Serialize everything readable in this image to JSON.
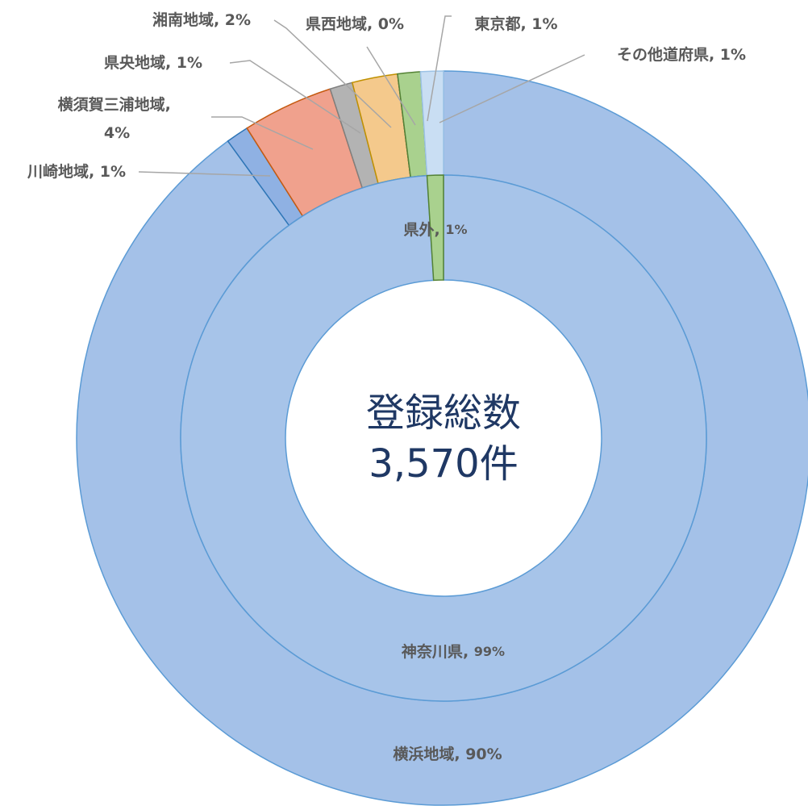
{
  "chart_data": {
    "type": "donut",
    "center_text": [
      "登録総数",
      "3,570件"
    ],
    "label_separator": ", ",
    "rings": [
      {
        "categories": [
          "横浜地域",
          "川崎地域",
          "横須賀三浦地域",
          "県央地域",
          "湘南地域",
          "県西地域",
          "東京都",
          "その他道府県"
        ],
        "values": [
          90,
          1,
          4,
          1,
          2,
          0,
          1,
          1
        ],
        "value_labels": [
          "90%",
          "1%",
          "4%",
          "1%",
          "2%",
          "0%",
          "1%",
          "1%"
        ],
        "colors": [
          "#a4c1e8",
          "#8fb1e3",
          "#f0a18d",
          "#b3b3b3",
          "#f4c98c",
          "#3b5c9c",
          "#a9d18e",
          "#c9def3"
        ]
      },
      {
        "categories": [
          "神奈川県",
          "県外"
        ],
        "values": [
          99,
          1
        ],
        "value_labels": [
          "99%",
          "1%"
        ],
        "colors": [
          "#a7c4e9",
          "#a9d18e"
        ]
      }
    ]
  }
}
